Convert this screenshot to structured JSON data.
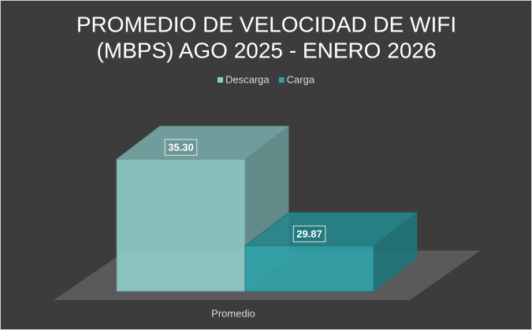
{
  "chart_data": {
    "type": "bar3d",
    "title": "PROMEDIO DE VELOCIDAD DE WIFI",
    "subtitle": "(MBPS) AGO 2025 - ENERO 2026",
    "categories": [
      "Promedio"
    ],
    "series": [
      {
        "name": "Descarga",
        "color": "#8fcac8",
        "values": [
          35.3
        ],
        "value_labels": [
          "35.30"
        ]
      },
      {
        "name": "Carga",
        "color": "#2fa2a8",
        "values": [
          29.87
        ],
        "value_labels": [
          "29.87"
        ]
      }
    ],
    "ylim": [
      27,
      36
    ],
    "legend": "top"
  }
}
